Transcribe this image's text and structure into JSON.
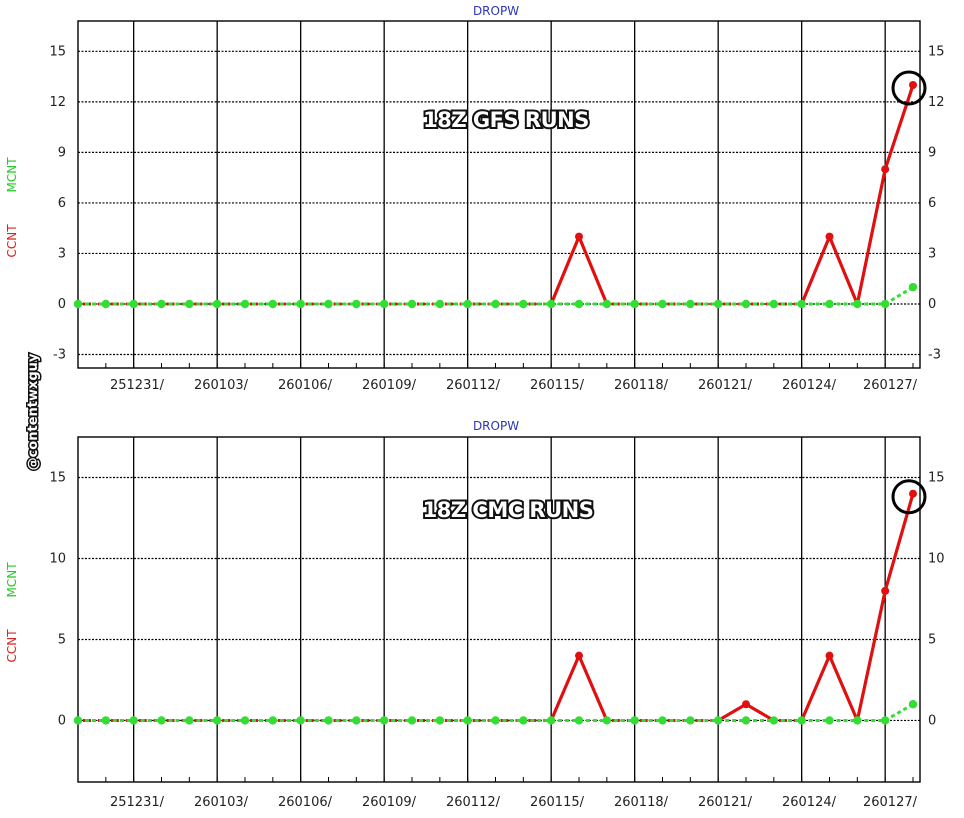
{
  "watermark": "@contentwxguy",
  "chart_data": [
    {
      "type": "line",
      "title": "DROPW",
      "overlay_label": "18Z GFS RUNS",
      "y_labels": [
        "CCNT",
        "MCNT"
      ],
      "ylim": [
        -3.8,
        16.8
      ],
      "yticks": [
        -3,
        0,
        3,
        6,
        9,
        12,
        15
      ],
      "x_tick_labels": [
        "251231/",
        "260103/",
        "260106/",
        "260109/",
        "260112/",
        "260115/",
        "260118/",
        "260121/",
        "260124/",
        "260127/"
      ],
      "grid": true,
      "series": [
        {
          "name": "CCNT",
          "color": "#e01010",
          "values": [
            0,
            0,
            0,
            0,
            0,
            0,
            0,
            0,
            0,
            0,
            0,
            0,
            0,
            0,
            0,
            0,
            0,
            0,
            4,
            0,
            0,
            0,
            0,
            0,
            0,
            0,
            0,
            4,
            0,
            8,
            13
          ]
        },
        {
          "name": "MCNT",
          "color": "#33dd33",
          "values": [
            0,
            0,
            0,
            0,
            0,
            0,
            0,
            0,
            0,
            0,
            0,
            0,
            0,
            0,
            0,
            0,
            0,
            0,
            0,
            0,
            0,
            0,
            0,
            0,
            0,
            0,
            0,
            0,
            0,
            0,
            1
          ]
        }
      ],
      "highlight_circle_index": 30
    },
    {
      "type": "line",
      "title": "DROPW",
      "overlay_label": "18Z CMC RUNS",
      "y_labels": [
        "CCNT",
        "MCNT"
      ],
      "ylim": [
        -3.8,
        17.5
      ],
      "yticks": [
        0,
        5,
        10,
        15
      ],
      "x_tick_labels": [
        "251231/",
        "260103/",
        "260106/",
        "260109/",
        "260112/",
        "260115/",
        "260118/",
        "260121/",
        "260124/",
        "260127/"
      ],
      "grid": true,
      "series": [
        {
          "name": "CCNT",
          "color": "#e01010",
          "values": [
            0,
            0,
            0,
            0,
            0,
            0,
            0,
            0,
            0,
            0,
            0,
            0,
            0,
            0,
            0,
            0,
            0,
            0,
            4,
            0,
            0,
            0,
            0,
            0,
            1,
            0,
            0,
            4,
            0,
            8,
            14
          ]
        },
        {
          "name": "MCNT",
          "color": "#33dd33",
          "values": [
            0,
            0,
            0,
            0,
            0,
            0,
            0,
            0,
            0,
            0,
            0,
            0,
            0,
            0,
            0,
            0,
            0,
            0,
            0,
            0,
            0,
            0,
            0,
            0,
            0,
            0,
            0,
            0,
            0,
            0,
            1
          ]
        }
      ],
      "highlight_circle_index": 30
    }
  ]
}
